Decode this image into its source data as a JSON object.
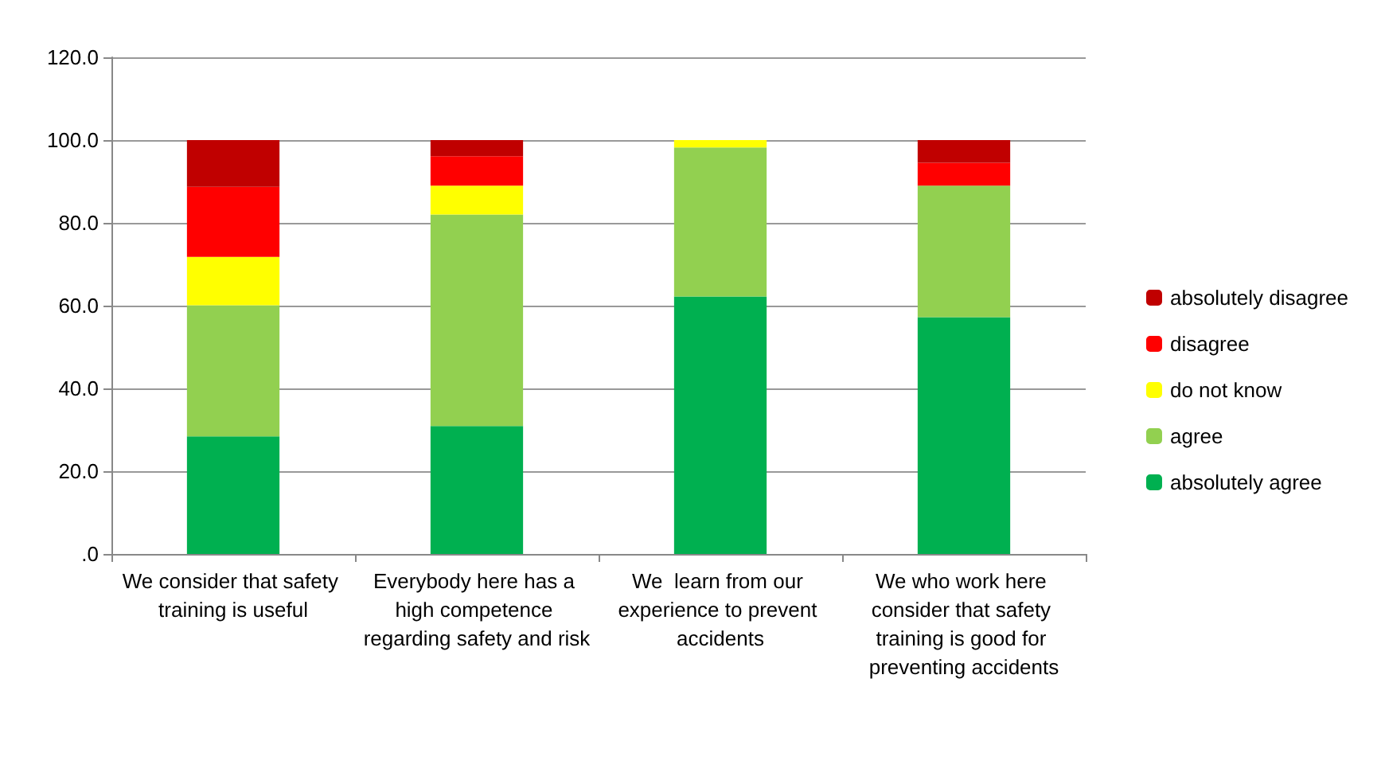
{
  "chart_data": {
    "type": "bar",
    "stacked": true,
    "categories": [
      "We consider that safety training is useful",
      "Everybody here has a high competence regarding safety and risk",
      "We  learn from our experience to prevent accidents",
      "We who work here consider that safety training is good for preventing accidents"
    ],
    "series": [
      {
        "name": "absolutely agree",
        "color": "#00b050",
        "values": [
          28.4,
          30.9,
          62.2,
          57.2
        ]
      },
      {
        "name": "agree",
        "color": "#92d050",
        "values": [
          31.7,
          51.1,
          36.0,
          31.8
        ]
      },
      {
        "name": "do not know",
        "color": "#ffff00",
        "values": [
          11.7,
          7.0,
          1.8,
          0
        ]
      },
      {
        "name": "disagree",
        "color": "#ff0000",
        "values": [
          16.9,
          7.1,
          0,
          5.5
        ]
      },
      {
        "name": "absolutely disagree",
        "color": "#c00000",
        "values": [
          11.3,
          3.9,
          0,
          5.5
        ]
      }
    ],
    "ylim": [
      0,
      120
    ],
    "yticks": [
      {
        "value": 0,
        "label": ".0"
      },
      {
        "value": 20,
        "label": "20.0"
      },
      {
        "value": 40,
        "label": "40.0"
      },
      {
        "value": 60,
        "label": "60.0"
      },
      {
        "value": 80,
        "label": "80.0"
      },
      {
        "value": 100,
        "label": "100.0"
      },
      {
        "value": 120,
        "label": "120.0"
      }
    ],
    "grid": "y",
    "legend": "right"
  }
}
